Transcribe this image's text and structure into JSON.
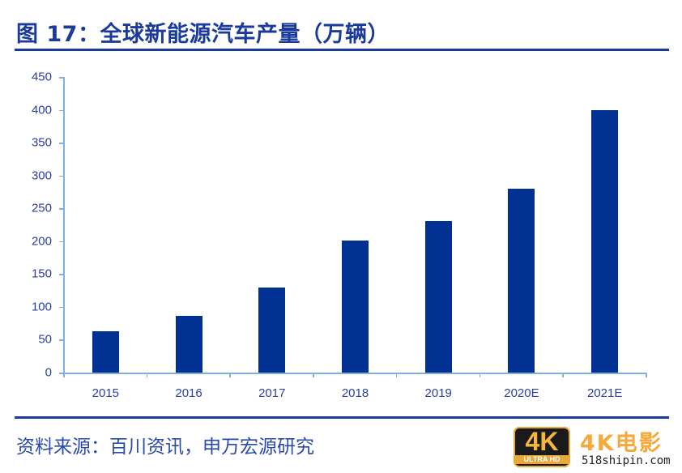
{
  "header": {
    "title": "图 17：全球新能源汽车产量（万辆）"
  },
  "footer": {
    "source": "资料来源：百川资讯，申万宏源研究"
  },
  "watermark": {
    "badge_main": "4K",
    "badge_sub": "ULTRA HD",
    "title": "4K电影",
    "url": "518shipin.com"
  },
  "colors": {
    "bar": "#003092",
    "title": "#1a3a9c",
    "axis": "#7fb0e0",
    "label": "#2c3f9a"
  },
  "chart_data": {
    "type": "bar",
    "title": "图 17：全球新能源汽车产量（万辆）",
    "xlabel": "",
    "ylabel": "",
    "categories": [
      "2015",
      "2016",
      "2017",
      "2018",
      "2019",
      "2020E",
      "2021E"
    ],
    "values": [
      63,
      86,
      130,
      201,
      230,
      280,
      400
    ],
    "unit": "万辆",
    "ylim": [
      0,
      450
    ],
    "yticks": [
      "0",
      "50",
      "100",
      "150",
      "200",
      "250",
      "300",
      "350",
      "400",
      "450"
    ],
    "grid": false,
    "legend": null
  }
}
